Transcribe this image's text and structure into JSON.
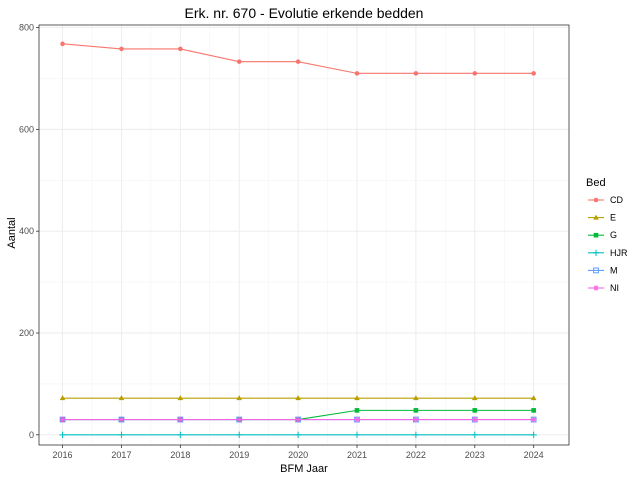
{
  "chart_data": {
    "type": "line",
    "title": "Erk. nr. 670 - Evolutie erkende bedden",
    "xlabel": "BFM Jaar",
    "ylabel": "Aantal",
    "x": [
      2016,
      2017,
      2018,
      2019,
      2020,
      2021,
      2022,
      2023,
      2024
    ],
    "xlim": [
      2015.6,
      2024.6
    ],
    "ylim": [
      -20,
      805
    ],
    "yticks": [
      0,
      200,
      400,
      600,
      800
    ],
    "grid": true,
    "legend": {
      "title": "Bed",
      "position": "right"
    },
    "series": [
      {
        "name": "CD",
        "color": "#F8766D",
        "marker": "circle",
        "values": [
          768,
          758,
          758,
          733,
          733,
          710,
          710,
          710,
          710
        ]
      },
      {
        "name": "E",
        "color": "#B79F00",
        "marker": "triangle",
        "values": [
          72,
          72,
          72,
          72,
          72,
          72,
          72,
          72,
          72
        ]
      },
      {
        "name": "G",
        "color": "#00BA38",
        "marker": "square-filled",
        "values": [
          30,
          30,
          30,
          30,
          30,
          48,
          48,
          48,
          48
        ]
      },
      {
        "name": "HJR",
        "color": "#00BFC4",
        "marker": "plus",
        "values": [
          0,
          0,
          0,
          0,
          0,
          0,
          0,
          0,
          0
        ]
      },
      {
        "name": "M",
        "color": "#619CFF",
        "marker": "square-open",
        "values": [
          30,
          30,
          30,
          30,
          30,
          30,
          30,
          30,
          30
        ]
      },
      {
        "name": "NI",
        "color": "#F564E3",
        "marker": "star",
        "values": [
          30,
          30,
          30,
          30,
          30,
          30,
          30,
          30,
          30
        ]
      }
    ]
  }
}
